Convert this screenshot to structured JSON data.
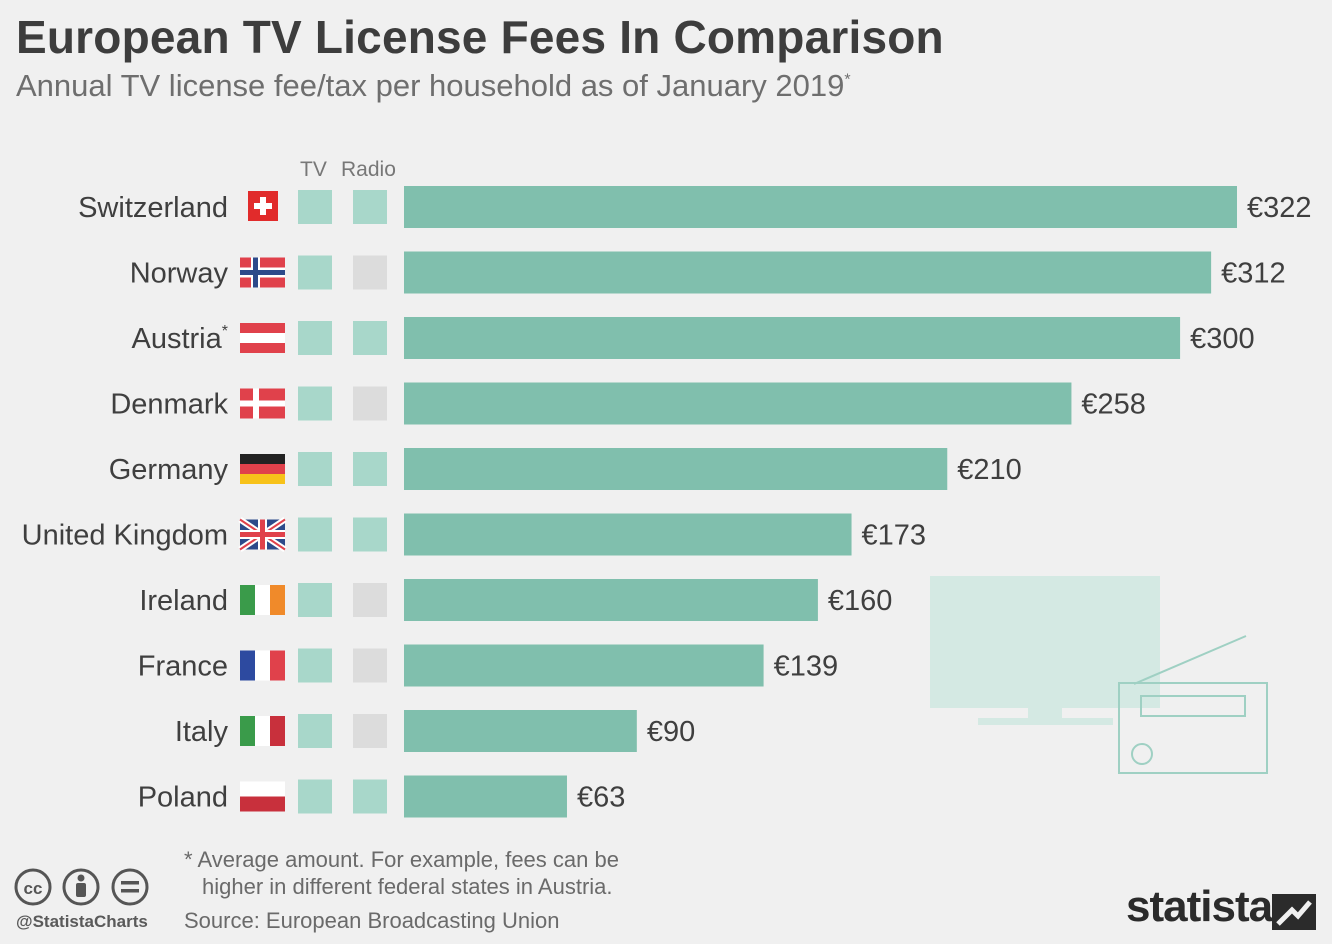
{
  "header": {
    "title": "European TV License Fees In Comparison",
    "subtitle": "Annual TV license fee/tax per household as of January 2019",
    "subtitle_mark": "*"
  },
  "columns": {
    "tv": "TV",
    "radio": "Radio"
  },
  "colors": {
    "bar": "#80bfad",
    "indicator_on": "#a8d7ca",
    "indicator_off": "#dcdcdc",
    "illustration": "#d4e9e3",
    "background": "#f0f0f0"
  },
  "chart_data": {
    "type": "bar",
    "orientation": "horizontal",
    "title": "European TV License Fees In Comparison",
    "subtitle": "Annual TV license fee/tax per household as of January 2019*",
    "unit": "EUR",
    "categories": [
      "Switzerland",
      "Norway",
      "Austria",
      "Denmark",
      "Germany",
      "United Kingdom",
      "Ireland",
      "France",
      "Italy",
      "Poland"
    ],
    "values": [
      322,
      312,
      300,
      258,
      210,
      173,
      160,
      139,
      90,
      63
    ],
    "value_labels": [
      "€322",
      "€312",
      "€300",
      "€258",
      "€210",
      "€173",
      "€160",
      "€139",
      "€90",
      "€63"
    ],
    "category_marks": [
      "",
      "",
      "*",
      "",
      "",
      "",
      "",
      "",
      "",
      ""
    ],
    "tv_included": [
      true,
      true,
      true,
      true,
      true,
      true,
      true,
      true,
      true,
      true
    ],
    "radio_included": [
      true,
      false,
      true,
      false,
      true,
      true,
      false,
      false,
      false,
      true
    ],
    "flags": [
      "switzerland-flag",
      "norway-flag",
      "austria-flag",
      "denmark-flag",
      "germany-flag",
      "uk-flag",
      "ireland-flag",
      "france-flag",
      "italy-flag",
      "poland-flag"
    ],
    "xlim": [
      0,
      322
    ],
    "grid": false,
    "legend": "none"
  },
  "footer": {
    "footnote_line1": "* Average amount. For example, fees can be",
    "footnote_line2": "higher in different federal states in Austria.",
    "source": "Source: European Broadcasting Union",
    "handle": "@StatistaCharts",
    "brand": "statista",
    "license_icons": [
      "cc-icon",
      "by-icon",
      "nd-icon"
    ]
  }
}
